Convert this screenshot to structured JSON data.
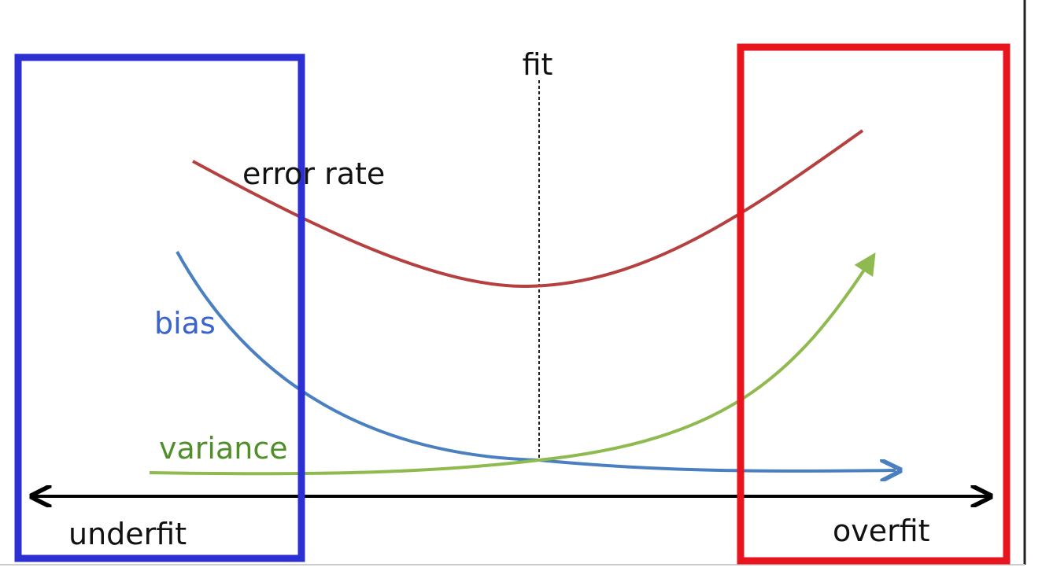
{
  "labels": {
    "fit": "fit",
    "error_rate": "error rate",
    "bias": "bias",
    "variance": "variance",
    "underfit": "underfit",
    "overfit": "overfit"
  },
  "colors": {
    "error_rate_curve": "#b5403f",
    "bias_curve": "#4a7fc0",
    "variance_curve": "#8fba4f",
    "bias_text": "#3a63cf",
    "variance_text": "#4f8f2a",
    "underfit_box": "#2c2fd1",
    "overfit_box": "#e8141e",
    "axis": "#000000",
    "text": "#111111",
    "frame_shadow": "#cccccc"
  }
}
